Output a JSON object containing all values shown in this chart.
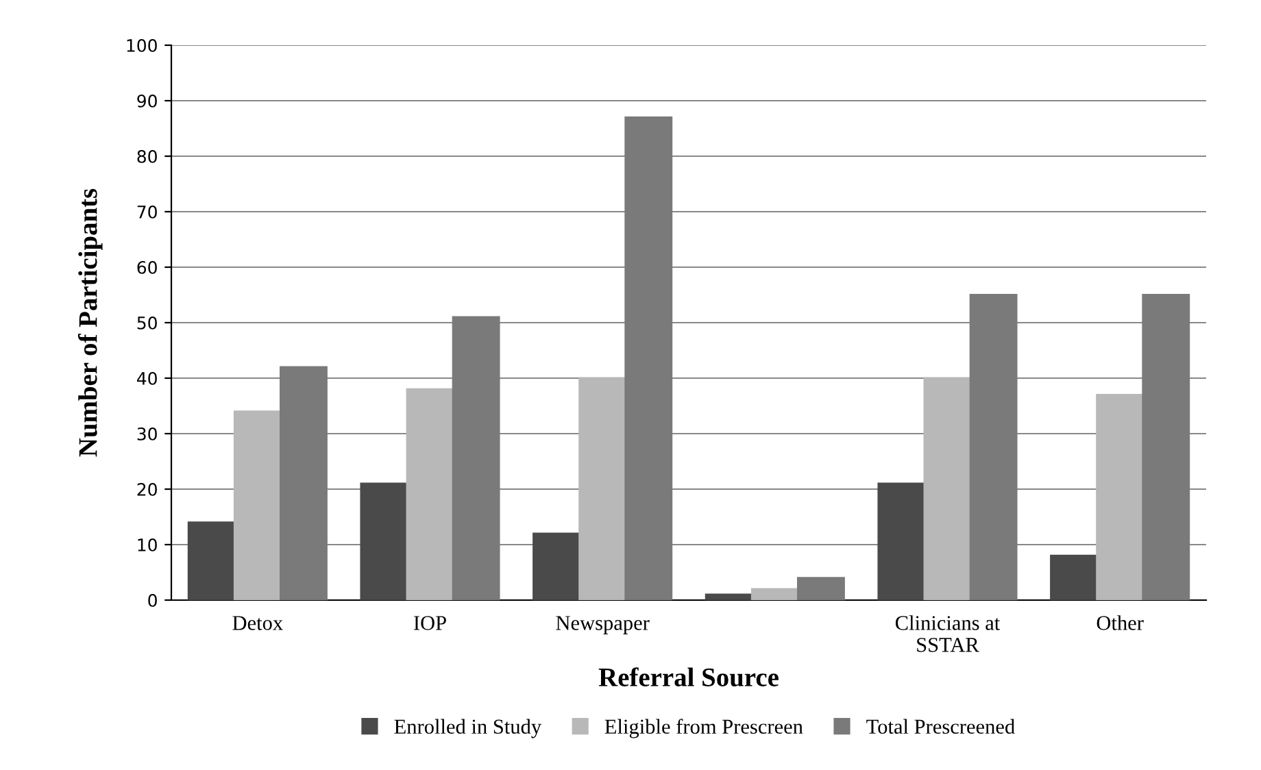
{
  "chart_data": {
    "type": "bar",
    "xlabel": "Referral Source",
    "ylabel": "Number of Participants",
    "categories": [
      "Detox",
      "IOP",
      "Newspaper",
      null,
      "Clinicians at\nSSTAR",
      "Other"
    ],
    "series": [
      {
        "name": "Enrolled in Study",
        "color": "#4a4a4a",
        "values": [
          14,
          21,
          12,
          1,
          21,
          8
        ]
      },
      {
        "name": "Eligible from Prescreen",
        "color": "#b8b8b8",
        "values": [
          34,
          38,
          40,
          2,
          40,
          37
        ]
      },
      {
        "name": "Total Prescreened",
        "color": "#7a7a7a",
        "values": [
          42,
          51,
          87,
          4,
          55,
          55
        ]
      }
    ],
    "ylim": [
      0,
      100
    ],
    "yticks": [
      0,
      10,
      20,
      30,
      40,
      50,
      60,
      70,
      80,
      90,
      100
    ],
    "grid": "y",
    "legend": "bottom"
  }
}
